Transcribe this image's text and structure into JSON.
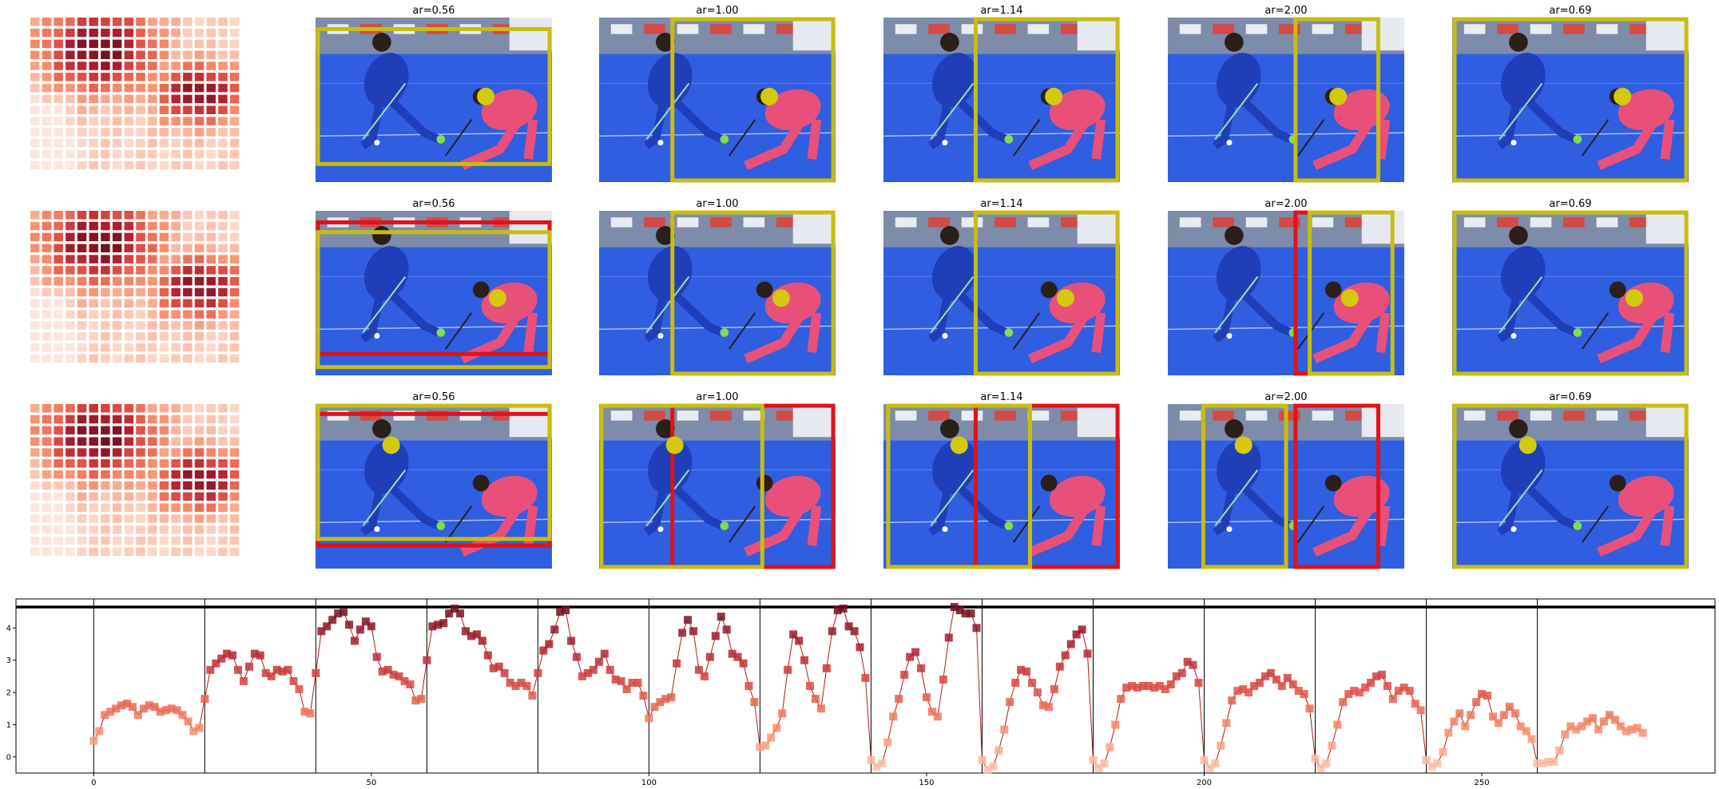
{
  "colors": {
    "heat_low": "#fde9df",
    "heat_high": "#7a1220",
    "line": "#b01a1a",
    "box_yellow": "#c8bd10",
    "box_red": "#e0121a",
    "dot": "#d4c90a",
    "field": "#2f5ee0",
    "jersey_blue": "#1f3fb8",
    "jersey_pink": "#e8507a"
  },
  "panels": {
    "titles": [
      "ar=0.56",
      "ar=1.00",
      "ar=1.14",
      "ar=2.00",
      "ar=0.69"
    ]
  },
  "chart_data": [
    {
      "type": "heatmap",
      "note_rows": 3,
      "rows": 14,
      "cols": 18
    },
    {
      "type": "line",
      "series_markers": "square",
      "xlim": [
        -14,
        292
      ],
      "ylim": [
        -0.5,
        4.9
      ],
      "xticks": [
        0,
        50,
        100,
        150,
        200,
        250
      ],
      "yticks": [
        0,
        1,
        2,
        3,
        4
      ],
      "hline_y": 4.65,
      "vlines_x": [
        0,
        20,
        40,
        60,
        80,
        100,
        120,
        140,
        160,
        180,
        200,
        220,
        240,
        260
      ],
      "x": [
        0,
        1,
        2,
        3,
        4,
        5,
        6,
        7,
        8,
        9,
        10,
        11,
        12,
        13,
        14,
        15,
        16,
        17,
        18,
        19,
        20,
        21,
        22,
        23,
        24,
        25,
        26,
        27,
        28,
        29,
        30,
        31,
        32,
        33,
        34,
        35,
        36,
        37,
        38,
        39,
        40,
        41,
        42,
        43,
        44,
        45,
        46,
        47,
        48,
        49,
        50,
        51,
        52,
        53,
        54,
        55,
        56,
        57,
        58,
        59,
        60,
        61,
        62,
        63,
        64,
        65,
        66,
        67,
        68,
        69,
        70,
        71,
        72,
        73,
        74,
        75,
        76,
        77,
        78,
        79,
        80,
        81,
        82,
        83,
        84,
        85,
        86,
        87,
        88,
        89,
        90,
        91,
        92,
        93,
        94,
        95,
        96,
        97,
        98,
        99,
        100,
        101,
        102,
        103,
        104,
        105,
        106,
        107,
        108,
        109,
        110,
        111,
        112,
        113,
        114,
        115,
        116,
        117,
        118,
        119,
        120,
        121,
        122,
        123,
        124,
        125,
        126,
        127,
        128,
        129,
        130,
        131,
        132,
        133,
        134,
        135,
        136,
        137,
        138,
        139,
        140,
        141,
        142,
        143,
        144,
        145,
        146,
        147,
        148,
        149,
        150,
        151,
        152,
        153,
        154,
        155,
        156,
        157,
        158,
        159,
        160,
        161,
        162,
        163,
        164,
        165,
        166,
        167,
        168,
        169,
        170,
        171,
        172,
        173,
        174,
        175,
        176,
        177,
        178,
        179,
        180,
        181,
        182,
        183,
        184,
        185,
        186,
        187,
        188,
        189,
        190,
        191,
        192,
        193,
        194,
        195,
        196,
        197,
        198,
        199,
        200,
        201,
        202,
        203,
        204,
        205,
        206,
        207,
        208,
        209,
        210,
        211,
        212,
        213,
        214,
        215,
        216,
        217,
        218,
        219,
        220,
        221,
        222,
        223,
        224,
        225,
        226,
        227,
        228,
        229,
        230,
        231,
        232,
        233,
        234,
        235,
        236,
        237,
        238,
        239,
        240,
        241,
        242,
        243,
        244,
        245,
        246,
        247,
        248,
        249,
        250,
        251,
        252,
        253,
        254,
        255,
        256,
        257,
        258,
        259,
        260,
        261,
        262,
        263,
        264,
        265,
        266,
        267,
        268,
        269,
        270,
        271,
        272,
        273,
        274,
        275,
        276,
        277,
        278,
        279
      ],
      "y": [
        0.5,
        0.8,
        1.3,
        1.4,
        1.5,
        1.6,
        1.65,
        1.55,
        1.3,
        1.5,
        1.6,
        1.55,
        1.4,
        1.45,
        1.5,
        1.45,
        1.3,
        1.1,
        0.8,
        0.9,
        1.8,
        2.7,
        2.9,
        3.05,
        3.2,
        3.15,
        2.7,
        2.35,
        2.8,
        3.2,
        3.15,
        2.6,
        2.5,
        2.7,
        2.65,
        2.7,
        2.35,
        2.1,
        1.4,
        1.35,
        2.6,
        3.9,
        4.05,
        4.25,
        4.45,
        4.5,
        4.1,
        3.6,
        3.95,
        4.2,
        4.05,
        3.1,
        2.65,
        2.7,
        2.55,
        2.5,
        2.35,
        2.25,
        1.75,
        1.8,
        3.0,
        4.05,
        4.1,
        4.15,
        4.45,
        4.6,
        4.45,
        3.9,
        3.75,
        3.8,
        3.6,
        3.15,
        2.75,
        2.8,
        2.6,
        2.3,
        2.2,
        2.3,
        2.2,
        1.9,
        2.6,
        3.3,
        3.5,
        3.95,
        4.5,
        4.55,
        3.6,
        3.1,
        2.5,
        2.6,
        2.7,
        2.95,
        3.2,
        2.7,
        2.4,
        2.35,
        2.1,
        2.3,
        2.3,
        1.9,
        1.2,
        1.55,
        1.7,
        1.8,
        1.85,
        2.9,
        3.85,
        4.25,
        3.9,
        2.7,
        2.5,
        3.1,
        3.75,
        4.35,
        3.95,
        3.2,
        3.1,
        2.9,
        2.2,
        1.7,
        0.3,
        0.35,
        0.6,
        0.9,
        1.35,
        2.7,
        3.8,
        3.6,
        3.0,
        2.2,
        1.8,
        1.5,
        2.75,
        3.9,
        4.55,
        4.6,
        4.05,
        3.9,
        3.4,
        2.45,
        -0.1,
        -0.3,
        -0.2,
        0.45,
        1.25,
        1.8,
        2.55,
        3.1,
        3.25,
        2.75,
        1.85,
        1.4,
        1.25,
        2.4,
        3.7,
        4.65,
        4.55,
        4.45,
        4.45,
        4.0,
        -0.1,
        -0.4,
        -0.3,
        0.2,
        0.85,
        1.7,
        2.3,
        2.7,
        2.65,
        2.3,
        2.0,
        1.6,
        1.55,
        2.1,
        2.8,
        3.15,
        3.5,
        3.8,
        3.95,
        3.2,
        -0.1,
        -0.35,
        -0.2,
        0.3,
        1.0,
        1.8,
        2.15,
        2.2,
        2.15,
        2.2,
        2.2,
        2.15,
        2.2,
        2.1,
        2.25,
        2.5,
        2.6,
        2.95,
        2.85,
        2.3,
        -0.1,
        -0.35,
        -0.2,
        0.35,
        1.05,
        1.75,
        2.05,
        2.1,
        2.0,
        2.2,
        2.3,
        2.5,
        2.6,
        2.4,
        2.2,
        2.45,
        2.25,
        2.05,
        1.95,
        1.5,
        -0.05,
        -0.35,
        -0.2,
        0.35,
        1.0,
        1.7,
        1.95,
        2.05,
        2.0,
        2.15,
        2.3,
        2.5,
        2.55,
        2.2,
        1.8,
        2.05,
        2.15,
        2.05,
        1.65,
        1.45,
        -0.1,
        -0.3,
        -0.2,
        0.15,
        0.75,
        1.1,
        1.35,
        0.95,
        1.3,
        1.7,
        1.95,
        1.9,
        1.25,
        1.05,
        1.3,
        1.55,
        1.35,
        0.95,
        0.8,
        0.55,
        -0.2,
        -0.2,
        -0.15,
        -0.15,
        0.2,
        0.7,
        0.95,
        0.85,
        0.95,
        1.1,
        1.2,
        0.85,
        1.1,
        1.3,
        1.15,
        0.95,
        0.8,
        0.85,
        0.9,
        0.75
      ]
    }
  ]
}
